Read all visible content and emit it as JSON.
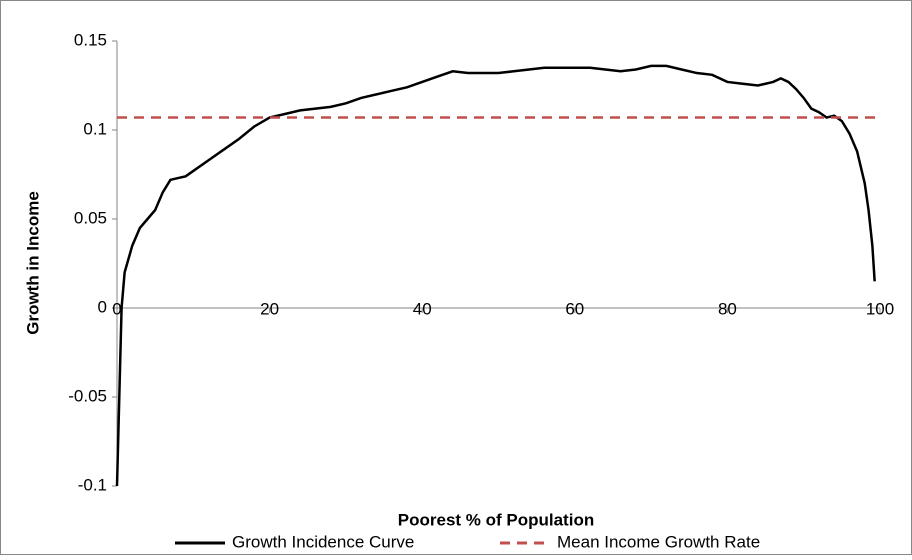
{
  "chart_data": {
    "type": "line",
    "x_label": "Poorest % of Population",
    "y_label": "Growth in Income",
    "xlim": [
      0,
      100
    ],
    "xticks": [
      0,
      20,
      40,
      60,
      80,
      100
    ],
    "ylim": [
      -0.1,
      0.15
    ],
    "yticks": [
      -0.1,
      -0.05,
      0,
      0.05,
      0.1,
      0.15
    ],
    "legend": "bottom",
    "series": [
      {
        "name": "Growth Incidence Curve",
        "color": "#000000",
        "style": "solid",
        "x": [
          0,
          0.3,
          0.6,
          1,
          2,
          3,
          4,
          5,
          6,
          7,
          8,
          9,
          10,
          12,
          14,
          16,
          18,
          20,
          22,
          24,
          26,
          28,
          30,
          32,
          34,
          36,
          38,
          40,
          42,
          44,
          46,
          48,
          50,
          52,
          54,
          56,
          58,
          60,
          62,
          64,
          66,
          68,
          70,
          72,
          74,
          76,
          78,
          80,
          82,
          84,
          86,
          87,
          88,
          89,
          90,
          91,
          92,
          93,
          94,
          95,
          96,
          97,
          98,
          98.5,
          99,
          99.3
        ],
        "values": [
          -0.1,
          -0.05,
          0,
          0.02,
          0.035,
          0.045,
          0.05,
          0.055,
          0.065,
          0.072,
          0.073,
          0.074,
          0.077,
          0.083,
          0.089,
          0.095,
          0.102,
          0.107,
          0.109,
          0.111,
          0.112,
          0.113,
          0.115,
          0.118,
          0.12,
          0.122,
          0.124,
          0.127,
          0.13,
          0.133,
          0.132,
          0.132,
          0.132,
          0.133,
          0.134,
          0.135,
          0.135,
          0.135,
          0.135,
          0.134,
          0.133,
          0.134,
          0.136,
          0.136,
          0.134,
          0.132,
          0.131,
          0.127,
          0.126,
          0.125,
          0.127,
          0.129,
          0.127,
          0.123,
          0.118,
          0.112,
          0.11,
          0.107,
          0.108,
          0.105,
          0.098,
          0.088,
          0.07,
          0.055,
          0.035,
          0.015
        ]
      },
      {
        "name": "Mean Income Growth Rate",
        "color": "#c0504d",
        "style": "dashed",
        "x": [
          0,
          100
        ],
        "values": [
          0.107,
          0.107
        ]
      }
    ]
  }
}
